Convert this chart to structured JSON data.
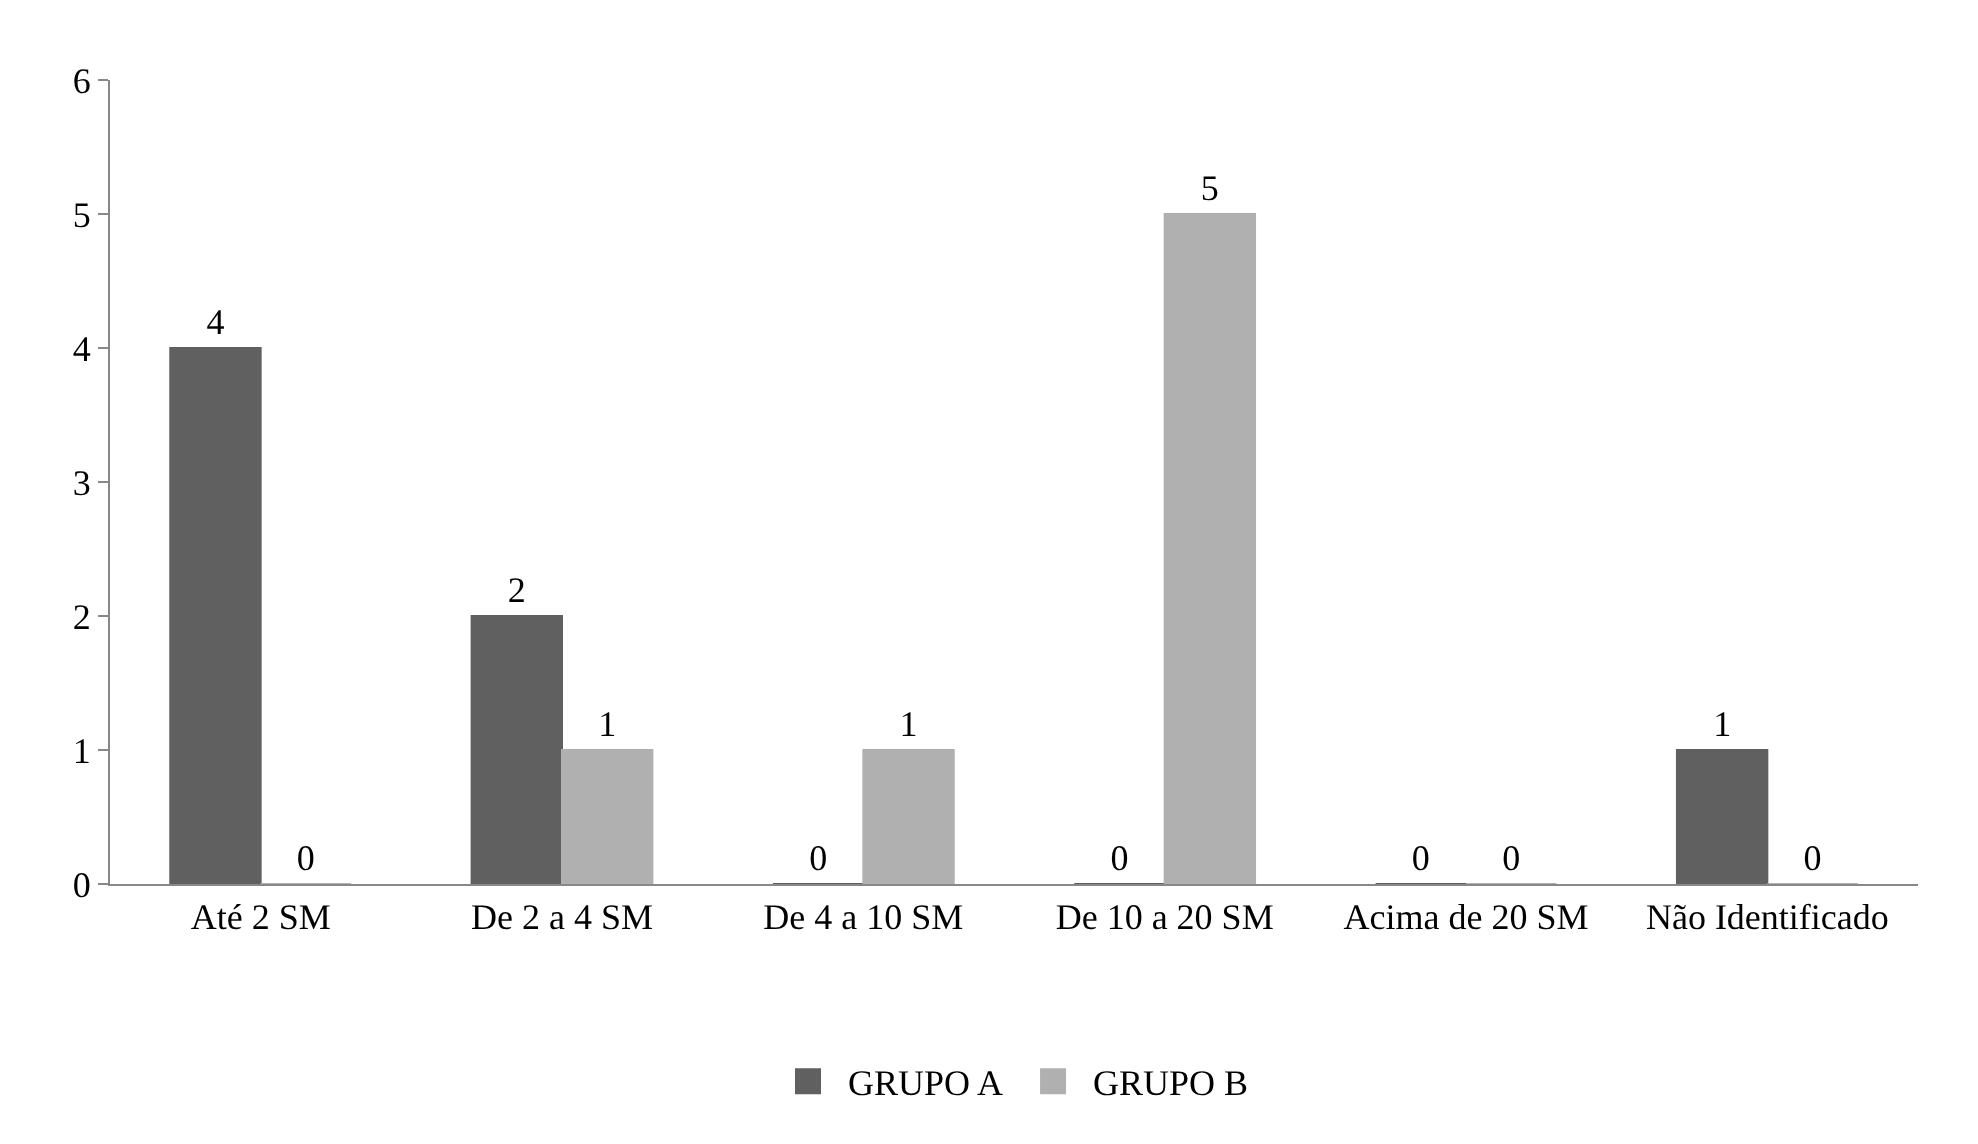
{
  "chart_data": {
    "type": "bar",
    "categories": [
      "Até 2 SM",
      "De 2 a 4 SM",
      "De 4 a 10 SM",
      "De 10 a 20 SM",
      "Acima de 20 SM",
      "Não Identificado"
    ],
    "series": [
      {
        "name": "GRUPO A",
        "color": "#606060",
        "values": [
          4,
          2,
          0,
          0,
          0,
          1
        ]
      },
      {
        "name": "GRUPO B",
        "color": "#b0b0b0",
        "values": [
          0,
          1,
          1,
          5,
          0,
          0
        ]
      }
    ],
    "ylim": [
      0,
      6
    ],
    "yticks": [
      0,
      1,
      2,
      3,
      4,
      5,
      6
    ],
    "data_labels": true,
    "legend": "bottom"
  }
}
